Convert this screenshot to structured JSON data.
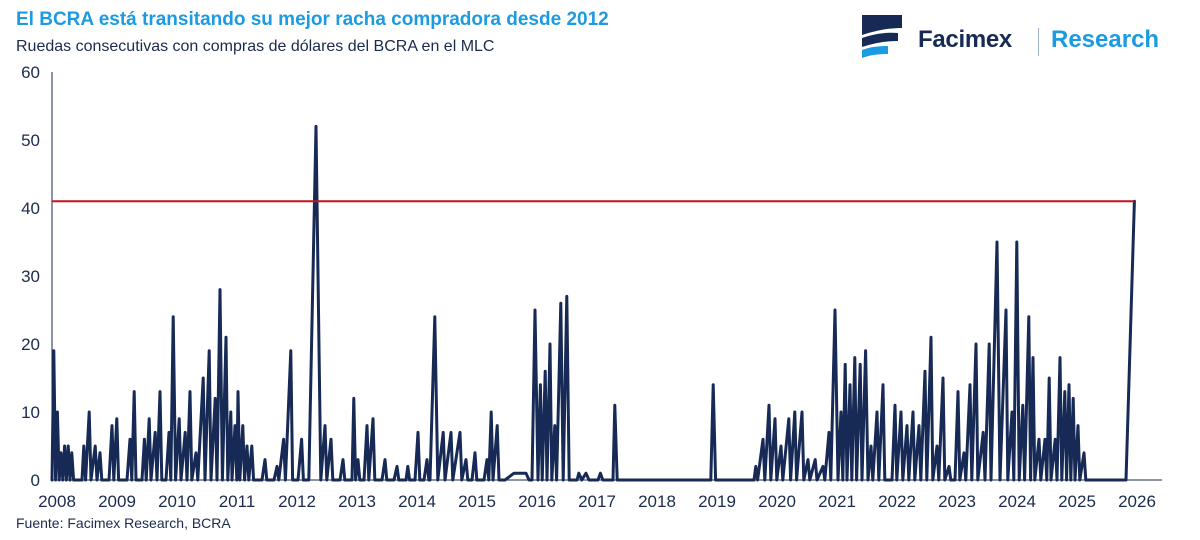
{
  "header": {
    "title": "El BCRA está transitando su mejor racha compradora desde 2012",
    "subtitle": "Ruedas consecutivas con compras de dólares del BCRA en el MLC"
  },
  "brand": {
    "name": "Facimex",
    "unit": "Research",
    "logo_icon": "facimex-logo-icon",
    "colors": {
      "navy": "#172a55",
      "blue": "#1d9be2"
    }
  },
  "footer": {
    "source": "Fuente: Facimex Research, BCRA"
  },
  "chart_data": {
    "type": "line",
    "ylim": [
      0,
      60
    ],
    "xlim": [
      2008,
      2026.5
    ],
    "y_ticks": [
      "0",
      "10",
      "20",
      "30",
      "40",
      "50",
      "60"
    ],
    "x_ticks": [
      "2008",
      "2009",
      "2010",
      "2011",
      "2012",
      "2013",
      "2014",
      "2015",
      "2016",
      "2017",
      "2018",
      "2019",
      "2020",
      "2021",
      "2022",
      "2023",
      "2024",
      "2025",
      "2026"
    ],
    "grid": false,
    "legend": "none",
    "colors": {
      "series": "#172a55",
      "reference": "#c0141c",
      "axis": "#1b2a4e"
    },
    "reference_line": {
      "y": 41
    },
    "series": [
      {
        "points": [
          [
            2008.0,
            0
          ],
          [
            2008.03,
            19
          ],
          [
            2008.06,
            0
          ],
          [
            2008.09,
            10
          ],
          [
            2008.12,
            0
          ],
          [
            2008.15,
            4
          ],
          [
            2008.18,
            0
          ],
          [
            2008.21,
            5
          ],
          [
            2008.24,
            0
          ],
          [
            2008.27,
            5
          ],
          [
            2008.3,
            0
          ],
          [
            2008.33,
            4
          ],
          [
            2008.36,
            0
          ],
          [
            2008.5,
            0
          ],
          [
            2008.53,
            5
          ],
          [
            2008.56,
            0
          ],
          [
            2008.62,
            10
          ],
          [
            2008.65,
            0
          ],
          [
            2008.72,
            5
          ],
          [
            2008.75,
            0
          ],
          [
            2008.8,
            4
          ],
          [
            2008.83,
            0
          ],
          [
            2008.95,
            0
          ],
          [
            2009.0,
            8
          ],
          [
            2009.03,
            0
          ],
          [
            2009.08,
            9
          ],
          [
            2009.11,
            0
          ],
          [
            2009.25,
            0
          ],
          [
            2009.3,
            6
          ],
          [
            2009.33,
            0
          ],
          [
            2009.37,
            13
          ],
          [
            2009.4,
            0
          ],
          [
            2009.5,
            0
          ],
          [
            2009.54,
            6
          ],
          [
            2009.57,
            0
          ],
          [
            2009.62,
            9
          ],
          [
            2009.65,
            0
          ],
          [
            2009.72,
            7
          ],
          [
            2009.75,
            0
          ],
          [
            2009.8,
            13
          ],
          [
            2009.83,
            0
          ],
          [
            2009.9,
            0
          ],
          [
            2009.95,
            7
          ],
          [
            2009.98,
            0
          ],
          [
            2010.02,
            24
          ],
          [
            2010.06,
            0
          ],
          [
            2010.12,
            9
          ],
          [
            2010.15,
            0
          ],
          [
            2010.22,
            7
          ],
          [
            2010.25,
            0
          ],
          [
            2010.3,
            13
          ],
          [
            2010.33,
            0
          ],
          [
            2010.4,
            4
          ],
          [
            2010.43,
            0
          ],
          [
            2010.52,
            15
          ],
          [
            2010.55,
            0
          ],
          [
            2010.62,
            19
          ],
          [
            2010.65,
            0
          ],
          [
            2010.72,
            12
          ],
          [
            2010.75,
            0
          ],
          [
            2010.8,
            28
          ],
          [
            2010.84,
            0
          ],
          [
            2010.9,
            21
          ],
          [
            2010.93,
            0
          ],
          [
            2010.98,
            10
          ],
          [
            2011.0,
            0
          ],
          [
            2011.05,
            8
          ],
          [
            2011.08,
            0
          ],
          [
            2011.1,
            13
          ],
          [
            2011.13,
            0
          ],
          [
            2011.18,
            8
          ],
          [
            2011.21,
            0
          ],
          [
            2011.25,
            5
          ],
          [
            2011.28,
            0
          ],
          [
            2011.33,
            5
          ],
          [
            2011.36,
            0
          ],
          [
            2011.5,
            0
          ],
          [
            2011.55,
            3
          ],
          [
            2011.58,
            0
          ],
          [
            2011.7,
            0
          ],
          [
            2011.75,
            2
          ],
          [
            2011.78,
            0
          ],
          [
            2011.86,
            6
          ],
          [
            2011.89,
            0
          ],
          [
            2011.98,
            19
          ],
          [
            2012.01,
            0
          ],
          [
            2012.1,
            0
          ],
          [
            2012.16,
            6
          ],
          [
            2012.19,
            0
          ],
          [
            2012.28,
            0
          ],
          [
            2012.4,
            52
          ],
          [
            2012.48,
            0
          ],
          [
            2012.55,
            8
          ],
          [
            2012.58,
            0
          ],
          [
            2012.65,
            6
          ],
          [
            2012.68,
            0
          ],
          [
            2012.8,
            0
          ],
          [
            2012.85,
            3
          ],
          [
            2012.88,
            0
          ],
          [
            2013.0,
            0
          ],
          [
            2013.03,
            12
          ],
          [
            2013.06,
            0
          ],
          [
            2013.1,
            3
          ],
          [
            2013.13,
            0
          ],
          [
            2013.2,
            0
          ],
          [
            2013.25,
            8
          ],
          [
            2013.28,
            0
          ],
          [
            2013.35,
            9
          ],
          [
            2013.38,
            0
          ],
          [
            2013.5,
            0
          ],
          [
            2013.55,
            3
          ],
          [
            2013.58,
            0
          ],
          [
            2013.7,
            0
          ],
          [
            2013.75,
            2
          ],
          [
            2013.78,
            0
          ],
          [
            2013.9,
            0
          ],
          [
            2013.93,
            2
          ],
          [
            2013.96,
            0
          ],
          [
            2014.05,
            0
          ],
          [
            2014.1,
            7
          ],
          [
            2014.13,
            0
          ],
          [
            2014.2,
            0
          ],
          [
            2014.25,
            3
          ],
          [
            2014.28,
            0
          ],
          [
            2014.3,
            0
          ],
          [
            2014.38,
            24
          ],
          [
            2014.43,
            0
          ],
          [
            2014.52,
            7
          ],
          [
            2014.55,
            0
          ],
          [
            2014.65,
            7
          ],
          [
            2014.68,
            0
          ],
          [
            2014.8,
            7
          ],
          [
            2014.83,
            0
          ],
          [
            2014.9,
            3
          ],
          [
            2014.93,
            0
          ],
          [
            2015.0,
            0
          ],
          [
            2015.05,
            4
          ],
          [
            2015.08,
            0
          ],
          [
            2015.2,
            0
          ],
          [
            2015.25,
            3
          ],
          [
            2015.28,
            0
          ],
          [
            2015.32,
            10
          ],
          [
            2015.35,
            0
          ],
          [
            2015.42,
            8
          ],
          [
            2015.45,
            0
          ],
          [
            2015.55,
            0
          ],
          [
            2015.7,
            1
          ],
          [
            2015.9,
            1
          ],
          [
            2015.95,
            0
          ],
          [
            2016.0,
            0
          ],
          [
            2016.05,
            25
          ],
          [
            2016.1,
            0
          ],
          [
            2016.14,
            14
          ],
          [
            2016.17,
            0
          ],
          [
            2016.22,
            16
          ],
          [
            2016.25,
            0
          ],
          [
            2016.3,
            20
          ],
          [
            2016.33,
            0
          ],
          [
            2016.38,
            8
          ],
          [
            2016.41,
            0
          ],
          [
            2016.48,
            26
          ],
          [
            2016.52,
            0
          ],
          [
            2016.58,
            27
          ],
          [
            2016.62,
            0
          ],
          [
            2016.75,
            0
          ],
          [
            2016.78,
            1
          ],
          [
            2016.83,
            0
          ],
          [
            2016.9,
            1
          ],
          [
            2016.95,
            0
          ],
          [
            2017.1,
            0
          ],
          [
            2017.14,
            1
          ],
          [
            2017.18,
            0
          ],
          [
            2017.35,
            0
          ],
          [
            2017.38,
            11
          ],
          [
            2017.42,
            0
          ],
          [
            2018.98,
            0
          ],
          [
            2019.02,
            14
          ],
          [
            2019.06,
            0
          ],
          [
            2019.7,
            0
          ],
          [
            2019.73,
            2
          ],
          [
            2019.76,
            0
          ],
          [
            2019.85,
            6
          ],
          [
            2019.88,
            0
          ],
          [
            2019.95,
            11
          ],
          [
            2019.98,
            0
          ],
          [
            2020.05,
            9
          ],
          [
            2020.08,
            0
          ],
          [
            2020.15,
            5
          ],
          [
            2020.18,
            0
          ],
          [
            2020.28,
            9
          ],
          [
            2020.31,
            0
          ],
          [
            2020.38,
            10
          ],
          [
            2020.41,
            0
          ],
          [
            2020.5,
            10
          ],
          [
            2020.53,
            0
          ],
          [
            2020.6,
            3
          ],
          [
            2020.63,
            0
          ],
          [
            2020.72,
            3
          ],
          [
            2020.75,
            0
          ],
          [
            2020.85,
            2
          ],
          [
            2020.88,
            0
          ],
          [
            2020.95,
            7
          ],
          [
            2020.98,
            0
          ],
          [
            2021.05,
            25
          ],
          [
            2021.1,
            0
          ],
          [
            2021.15,
            10
          ],
          [
            2021.18,
            0
          ],
          [
            2021.22,
            17
          ],
          [
            2021.25,
            0
          ],
          [
            2021.3,
            14
          ],
          [
            2021.33,
            0
          ],
          [
            2021.38,
            18
          ],
          [
            2021.41,
            0
          ],
          [
            2021.47,
            17
          ],
          [
            2021.5,
            0
          ],
          [
            2021.56,
            19
          ],
          [
            2021.6,
            0
          ],
          [
            2021.65,
            5
          ],
          [
            2021.68,
            0
          ],
          [
            2021.75,
            10
          ],
          [
            2021.78,
            0
          ],
          [
            2021.85,
            14
          ],
          [
            2021.88,
            0
          ],
          [
            2022.0,
            0
          ],
          [
            2022.05,
            11
          ],
          [
            2022.08,
            0
          ],
          [
            2022.15,
            10
          ],
          [
            2022.18,
            0
          ],
          [
            2022.25,
            8
          ],
          [
            2022.28,
            0
          ],
          [
            2022.35,
            10
          ],
          [
            2022.38,
            0
          ],
          [
            2022.45,
            8
          ],
          [
            2022.48,
            0
          ],
          [
            2022.55,
            16
          ],
          [
            2022.58,
            0
          ],
          [
            2022.65,
            21
          ],
          [
            2022.68,
            0
          ],
          [
            2022.75,
            5
          ],
          [
            2022.78,
            0
          ],
          [
            2022.85,
            15
          ],
          [
            2022.88,
            0
          ],
          [
            2022.95,
            2
          ],
          [
            2022.98,
            0
          ],
          [
            2023.05,
            0
          ],
          [
            2023.1,
            13
          ],
          [
            2023.13,
            0
          ],
          [
            2023.2,
            4
          ],
          [
            2023.23,
            0
          ],
          [
            2023.3,
            14
          ],
          [
            2023.33,
            0
          ],
          [
            2023.4,
            20
          ],
          [
            2023.43,
            0
          ],
          [
            2023.52,
            7
          ],
          [
            2023.55,
            0
          ],
          [
            2023.62,
            20
          ],
          [
            2023.65,
            0
          ],
          [
            2023.75,
            35
          ],
          [
            2023.8,
            0
          ],
          [
            2023.9,
            25
          ],
          [
            2023.93,
            0
          ],
          [
            2024.0,
            10
          ],
          [
            2024.03,
            0
          ],
          [
            2024.08,
            35
          ],
          [
            2024.12,
            0
          ],
          [
            2024.18,
            11
          ],
          [
            2024.21,
            0
          ],
          [
            2024.28,
            24
          ],
          [
            2024.31,
            0
          ],
          [
            2024.35,
            18
          ],
          [
            2024.38,
            0
          ],
          [
            2024.45,
            6
          ],
          [
            2024.48,
            0
          ],
          [
            2024.55,
            6
          ],
          [
            2024.58,
            0
          ],
          [
            2024.62,
            15
          ],
          [
            2024.65,
            0
          ],
          [
            2024.72,
            6
          ],
          [
            2024.75,
            0
          ],
          [
            2024.8,
            18
          ],
          [
            2024.83,
            0
          ],
          [
            2024.88,
            13
          ],
          [
            2024.91,
            0
          ],
          [
            2024.95,
            14
          ],
          [
            2024.98,
            0
          ],
          [
            2025.02,
            12
          ],
          [
            2025.05,
            0
          ],
          [
            2025.1,
            8
          ],
          [
            2025.13,
            0
          ],
          [
            2025.2,
            4
          ],
          [
            2025.23,
            0
          ],
          [
            2025.3,
            0
          ],
          [
            2025.9,
            0
          ],
          [
            2026.04,
            41
          ]
        ]
      }
    ]
  }
}
